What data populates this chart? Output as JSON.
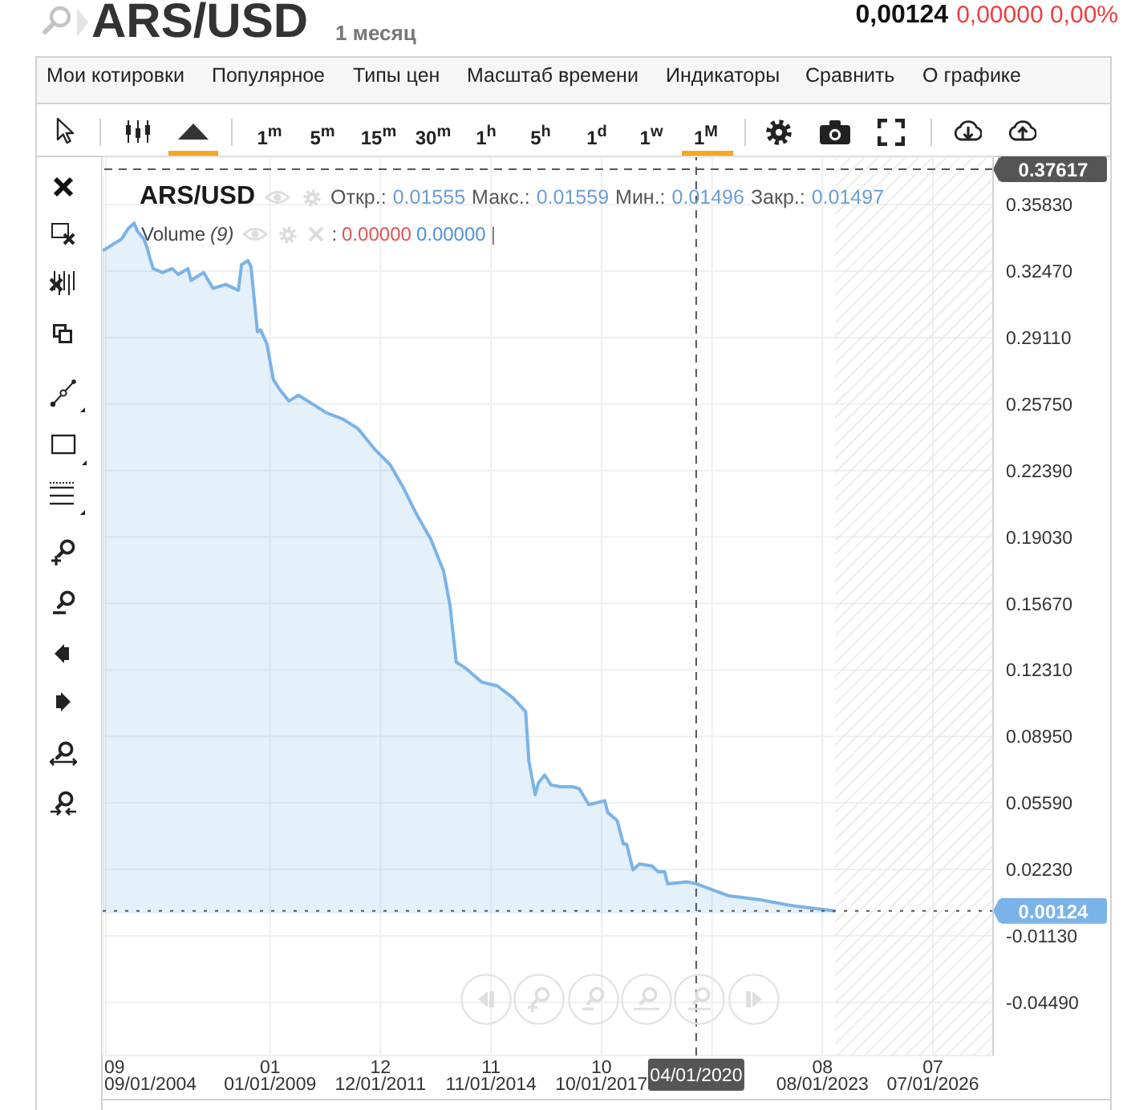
{
  "chart_data": {
    "type": "area",
    "title": "ARS/USD",
    "subtitle": "1 месяц",
    "x": [
      "2004-08",
      "2004-11",
      "2005-02",
      "2005-04",
      "2005-06",
      "2005-07",
      "2005-09",
      "2005-10",
      "2005-11",
      "2005-12",
      "2006-03",
      "2006-06",
      "2006-08",
      "2006-11",
      "2006-12",
      "2007-04",
      "2007-07",
      "2007-11",
      "2008-03",
      "2008-04",
      "2008-06",
      "2008-07",
      "2008-09",
      "2008-10",
      "2008-12",
      "2009-02",
      "2009-04",
      "2009-07",
      "2009-10",
      "2010-02",
      "2010-07",
      "2010-12",
      "2011-05",
      "2011-10",
      "2012-03",
      "2012-07",
      "2012-11",
      "2013-04",
      "2013-08",
      "2013-10",
      "2013-12",
      "2014-03",
      "2014-08",
      "2015-01",
      "2015-06",
      "2015-10",
      "2015-11",
      "2016-01",
      "2016-02",
      "2016-04",
      "2016-06",
      "2016-09",
      "2017-01",
      "2017-03",
      "2017-06",
      "2017-11",
      "2017-12",
      "2018-03",
      "2018-05",
      "2018-06",
      "2018-08",
      "2018-10",
      "2019-02",
      "2019-04",
      "2019-06",
      "2019-07",
      "2020-01",
      "2020-04",
      "2021-02",
      "2021-12",
      "2022-10",
      "2023-12"
    ],
    "series": [
      {
        "color": "#7ab3e8",
        "values": [
          0.335,
          0.338,
          0.341,
          0.346,
          0.349,
          0.345,
          0.341,
          0.337,
          0.331,
          0.326,
          0.324,
          0.326,
          0.323,
          0.326,
          0.32,
          0.324,
          0.316,
          0.318,
          0.315,
          0.328,
          0.33,
          0.327,
          0.294,
          0.295,
          0.288,
          0.27,
          0.265,
          0.259,
          0.262,
          0.258,
          0.253,
          0.25,
          0.245,
          0.235,
          0.227,
          0.216,
          0.203,
          0.189,
          0.173,
          0.156,
          0.127,
          0.124,
          0.117,
          0.115,
          0.109,
          0.102,
          0.077,
          0.06,
          0.066,
          0.07,
          0.065,
          0.064,
          0.064,
          0.063,
          0.055,
          0.057,
          0.051,
          0.047,
          0.035,
          0.035,
          0.022,
          0.025,
          0.024,
          0.021,
          0.021,
          0.015,
          0.016,
          0.015,
          0.009,
          0.007,
          0.004,
          0.00124
        ]
      }
    ],
    "xlim": [
      "2004-08-01",
      "2028-02-01"
    ],
    "xticks": [
      {
        "value": "2004-09-01",
        "label": "09\n09/01/2004"
      },
      {
        "value": "2009-01-01",
        "label": "01\n01/01/2009"
      },
      {
        "value": "2011-12-01",
        "label": "12\n12/01/2011"
      },
      {
        "value": "2014-11-01",
        "label": "11\n11/01/2014"
      },
      {
        "value": "2017-10-01",
        "label": "10\n10/01/2017"
      },
      {
        "value": "2020-09-01",
        "label": null
      },
      {
        "value": "2023-08-01",
        "label": "08\n08/01/2023"
      },
      {
        "value": "2026-07-01",
        "label": "07\n07/01/2026"
      }
    ],
    "ylim": [
      -0.0718,
      0.3823
    ],
    "yticks": [
      {
        "value": 0.3583,
        "label": "0.35830"
      },
      {
        "value": 0.3247,
        "label": "0.32470"
      },
      {
        "value": 0.2911,
        "label": "0.29110"
      },
      {
        "value": 0.2575,
        "label": "0.25750"
      },
      {
        "value": 0.2239,
        "label": "0.22390"
      },
      {
        "value": 0.1903,
        "label": "0.19030"
      },
      {
        "value": 0.1567,
        "label": "0.15670"
      },
      {
        "value": 0.1231,
        "label": "0.12310"
      },
      {
        "value": 0.0895,
        "label": "0.08950"
      },
      {
        "value": 0.0559,
        "label": "0.05590"
      },
      {
        "value": 0.0223,
        "label": "0.02230"
      },
      {
        "value": -0.0113,
        "label": "-0.01130"
      },
      {
        "value": -0.0449,
        "label": "-0.04490"
      }
    ],
    "grid": true,
    "ref_lines": [
      {
        "axis": "y",
        "value": 0.37617,
        "label": "0.37617",
        "color": "#555555",
        "line_style": "dashed"
      },
      {
        "axis": "y",
        "value": 0.00124,
        "label": "0.00124",
        "color": "#555555",
        "line_style": "dotted"
      },
      {
        "axis": "x",
        "value": "2020-04-01",
        "label": "04/01/2020",
        "color": "#555555",
        "line_style": "dashed"
      }
    ],
    "bands": [
      {
        "axis": "x",
        "from": "2023-12-01",
        "to": "2028-02-01",
        "color": "#e4e4e4"
      }
    ],
    "annotations": [
      "0,00124",
      "0,00000 0,00%",
      "Мои котировки",
      "Популярное",
      "Типы цен",
      "Масштаб времени",
      "Индикаторы",
      "Сравнить",
      "О графике",
      "1$^{m}$",
      "5$^{m}$",
      "15$^{m}$",
      "30$^{m}$",
      "1$^{h}$",
      "5$^{h}$",
      "1$^{d}$",
      "1$^{w}$",
      "1$^{M}$",
      "ARS/USD",
      "Откр.:",
      "0.01555",
      "Макс.:",
      "0.01559",
      "Мин.:",
      "0.01496",
      "Закр.:",
      "0.01497",
      "Volume",
      "(9)",
      ":",
      "0.00000",
      "0.00000",
      "|"
    ]
  }
}
